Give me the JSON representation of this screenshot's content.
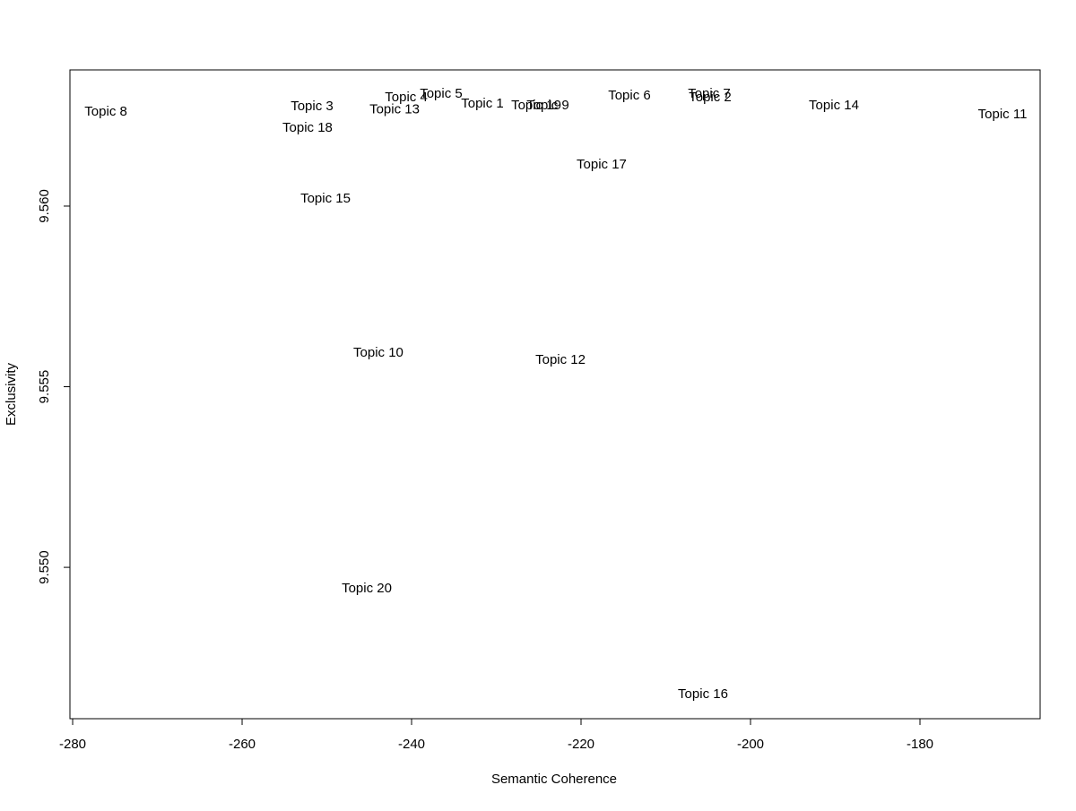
{
  "chart_data": {
    "type": "scatter",
    "xlabel": "Semantic Coherence",
    "ylabel": "Exclusivity",
    "labels": [
      "Topic 8",
      "Topic 3",
      "Topic 18",
      "Topic 4",
      "Topic 5",
      "Topic 13",
      "Topic 1",
      "Topic 19",
      "Topic 9",
      "Topic 6",
      "Topic 7",
      "Topic 2",
      "Topic 14",
      "Topic 11",
      "Topic 17",
      "Topic 15",
      "Topic 10",
      "Topic 12",
      "Topic 20",
      "Topic 16"
    ],
    "x": [
      -276.08,
      -251.75,
      -252.28,
      -240.63,
      -236.51,
      -242.01,
      -231.64,
      -225.29,
      -223.92,
      -214.29,
      -204.87,
      -204.76,
      -190.16,
      -170.26,
      -217.57,
      -250.16,
      -243.92,
      -222.43,
      -245.29,
      -205.61
    ],
    "values": [
      9.5626,
      9.56275,
      9.56216,
      9.563,
      9.5631,
      9.56266,
      9.56283,
      9.56278,
      9.56278,
      9.56305,
      9.5631,
      9.563,
      9.56278,
      9.56253,
      9.56114,
      9.5602,
      9.55593,
      9.55573,
      9.5494,
      9.54648
    ],
    "color": "#000000",
    "xlim": [
      -280.32,
      -165.82
    ],
    "ylim": [
      9.54581,
      9.56377
    ],
    "xticks": [
      -280,
      -260,
      -240,
      -220,
      -200,
      -180
    ],
    "yticks": [
      {
        "value": 9.55,
        "label": "9.550"
      },
      {
        "value": 9.555,
        "label": "9.555"
      },
      {
        "value": 9.56,
        "label": "9.560"
      }
    ]
  }
}
